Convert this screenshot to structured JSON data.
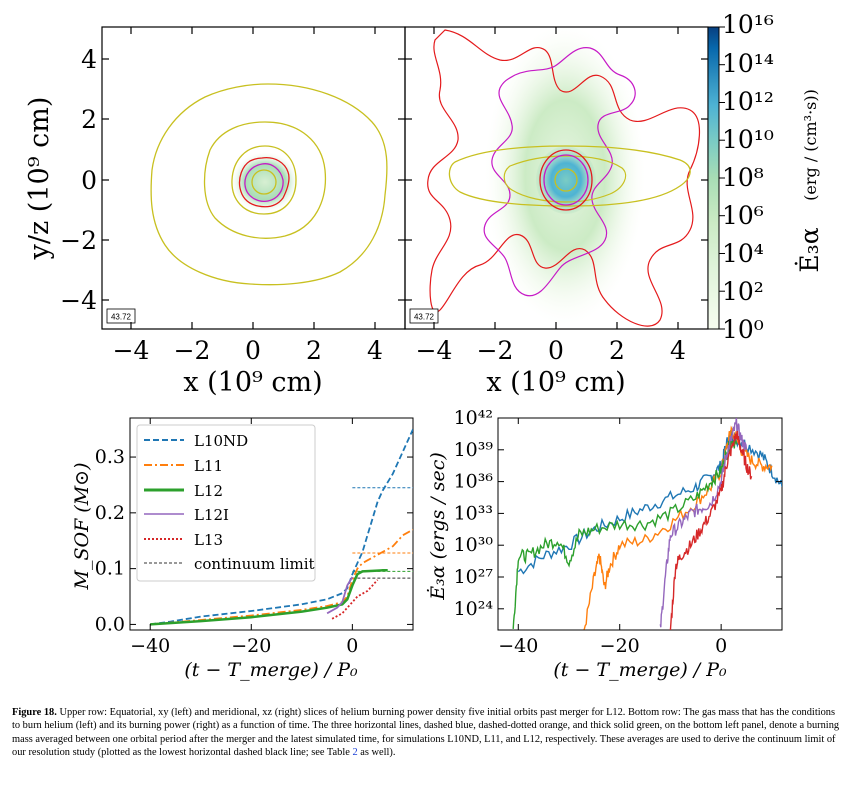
{
  "top_panels": {
    "y_axis_label": "y/z (10⁹ cm)",
    "x_axis_label": "x (10⁹ cm)",
    "x_ticks": [
      "−4",
      "−2",
      "0",
      "2",
      "4"
    ],
    "y_ticks": [
      "4",
      "2",
      "0",
      "−2",
      "−4"
    ],
    "left_time_label": "43.72",
    "right_time_label": "43.72",
    "colorbar": {
      "ticks": [
        "10¹⁶",
        "10¹⁴",
        "10¹²",
        "10¹⁰",
        "10⁸",
        "10⁶",
        "10⁴",
        "10²",
        "10⁰"
      ],
      "label_symbol": "Ė₃α",
      "label_units": "(erg / (cm³·s))",
      "colormap": [
        "#f7fcf0",
        "#e0f3db",
        "#ccebc5",
        "#a8ddb5",
        "#7bccc4",
        "#4eb3d3",
        "#2b8cbe",
        "#0868ac",
        "#084081"
      ]
    },
    "contour_colors": {
      "yellow": "#c8c020",
      "red": "#e41a1c",
      "magenta": "#c61ac6"
    }
  },
  "chart_data": [
    {
      "type": "line",
      "title": "",
      "xlabel": "(t − T_merge) / P₀",
      "ylabel": "M_SOF (M⊙)",
      "xlim": [
        -44,
        12
      ],
      "ylim": [
        -0.01,
        0.37
      ],
      "x_ticks": [
        "−40",
        "−20",
        "0"
      ],
      "y_ticks": [
        "0.0",
        "0.1",
        "0.2",
        "0.3"
      ],
      "legend_position": "top-left",
      "series": [
        {
          "name": "L10ND",
          "color": "#1f77b4",
          "style": "dashed",
          "x": [
            -40,
            -36,
            -30,
            -20,
            -10,
            -5,
            -2,
            -1,
            0,
            1,
            2,
            3,
            4,
            5,
            6,
            8,
            10,
            12
          ],
          "y": [
            0,
            0.005,
            0.014,
            0.024,
            0.036,
            0.045,
            0.056,
            0.065,
            0.09,
            0.11,
            0.13,
            0.16,
            0.19,
            0.22,
            0.24,
            0.27,
            0.31,
            0.35
          ]
        },
        {
          "name": "L11",
          "color": "#ff7f0e",
          "style": "dashdot",
          "x": [
            -40,
            -30,
            -20,
            -10,
            -5,
            -2,
            -1,
            0,
            1,
            2,
            3,
            4,
            6,
            8,
            10,
            12
          ],
          "y": [
            0,
            0.008,
            0.016,
            0.026,
            0.033,
            0.04,
            0.05,
            0.08,
            0.1,
            0.11,
            0.115,
            0.12,
            0.13,
            0.14,
            0.16,
            0.17
          ]
        },
        {
          "name": "L12",
          "color": "#2ca02c",
          "style": "solid",
          "x": [
            -40,
            -30,
            -20,
            -10,
            -5,
            -2,
            -1,
            0,
            1,
            2,
            4,
            6,
            7
          ],
          "y": [
            0,
            0.006,
            0.013,
            0.023,
            0.03,
            0.036,
            0.045,
            0.07,
            0.09,
            0.095,
            0.096,
            0.097,
            0.097
          ]
        },
        {
          "name": "L12I",
          "color": "#9467bd",
          "style": "solid",
          "x": [
            -5,
            -3,
            -2,
            -1,
            0
          ],
          "y": [
            0.02,
            0.03,
            0.04,
            0.07,
            0.085
          ]
        },
        {
          "name": "L13",
          "color": "#d62728",
          "style": "dotted",
          "x": [
            -4,
            -2,
            0,
            1,
            2,
            3,
            4,
            5
          ],
          "y": [
            0.01,
            0.02,
            0.04,
            0.05,
            0.055,
            0.06,
            0.07,
            0.08
          ]
        }
      ],
      "averages": [
        {
          "series": "L10ND",
          "x": [
            0,
            12
          ],
          "y": 0.245,
          "color": "#1f77b4"
        },
        {
          "series": "L11",
          "x": [
            0,
            12
          ],
          "y": 0.128,
          "color": "#ff7f0e"
        },
        {
          "series": "L12",
          "x": [
            0,
            12
          ],
          "y": 0.095,
          "color": "#2ca02c"
        }
      ],
      "continuum_limit": {
        "name": "continuum limit",
        "y": 0.083,
        "x": [
          0,
          12
        ],
        "color": "#333333"
      }
    },
    {
      "type": "line",
      "title": "",
      "xlabel": "(t − T_merge) / P₀",
      "ylabel": "Ė₃α (ergs / sec)",
      "xlim": [
        -44,
        12
      ],
      "ylim_log10": [
        22,
        42
      ],
      "x_ticks": [
        "−40",
        "−20",
        "0"
      ],
      "y_ticks": [
        "10²⁴",
        "10²⁷",
        "10³⁰",
        "10³³",
        "10³⁶",
        "10³⁹",
        "10⁴²"
      ],
      "series": [
        {
          "name": "L10ND",
          "color": "#1f77b4",
          "x": [
            -40,
            -35,
            -30,
            -25,
            -20,
            -15,
            -10,
            -5,
            -2,
            0,
            1,
            2,
            3,
            5,
            8,
            10,
            12
          ],
          "log10y": [
            27.5,
            29,
            30,
            31.5,
            32.5,
            33.5,
            34.5,
            35.5,
            36.5,
            37.5,
            39.5,
            40.5,
            40,
            39.5,
            38.5,
            37,
            35.5
          ]
        },
        {
          "name": "L11",
          "color": "#ff7f0e",
          "x": [
            -27,
            -25,
            -24,
            -23,
            -22,
            -20,
            -15,
            -10,
            -5,
            -2,
            0,
            1,
            2,
            4,
            6,
            8,
            10
          ],
          "log10y": [
            22,
            27,
            29,
            26,
            28,
            30,
            30.5,
            32,
            34,
            35.5,
            37,
            39,
            41,
            39,
            38,
            37.5,
            37.5
          ]
        },
        {
          "name": "L12",
          "color": "#2ca02c",
          "x": [
            -41,
            -40,
            -38,
            -35,
            -32,
            -30,
            -28,
            -25,
            -20,
            -15,
            -10,
            -5,
            -2,
            0,
            1,
            2,
            3
          ],
          "log10y": [
            22,
            29,
            29,
            30,
            30.5,
            28.5,
            31,
            31.5,
            32,
            32,
            33,
            34.5,
            36,
            37,
            38.5,
            40,
            39.5
          ]
        },
        {
          "name": "L12I",
          "color": "#9467bd",
          "x": [
            -12,
            -11,
            -10,
            -8,
            -6,
            -4,
            -2,
            0,
            1,
            2,
            3,
            4,
            5
          ],
          "log10y": [
            22,
            27,
            31,
            32,
            33,
            33.5,
            34,
            36,
            38.5,
            40,
            41.5,
            40,
            39
          ]
        },
        {
          "name": "L13",
          "color": "#d62728",
          "x": [
            -10,
            -9,
            -8,
            -6,
            -4,
            -2,
            0,
            1,
            2,
            3,
            4,
            5,
            6
          ],
          "log10y": [
            22,
            28,
            29,
            30,
            31.5,
            33,
            35,
            37.5,
            39,
            40.5,
            39,
            37.5,
            36.5
          ]
        }
      ]
    }
  ],
  "caption": {
    "label": "Figure 18.",
    "text_part1": "Upper row: Equatorial, xy (left) and meridional, xz (right) slices of helium burning power density five initial orbits past merger for L12. Bottom row: The gas mass that has the conditions to burn helium (left) and its burning power (right) as a function of time. The three horizontal lines, dashed blue, dashed-dotted orange, and thick solid green, on the bottom left panel, denote a burning mass averaged between one orbital period after the merger and the latest simulated time, for simulations L10ND, L11, and L12, respectively. These averages are used to derive the continuum limit of our resolution study (plotted as the lowest horizontal dashed black line; see Table ",
    "table_ref": "2",
    "text_part2": " as well)."
  }
}
